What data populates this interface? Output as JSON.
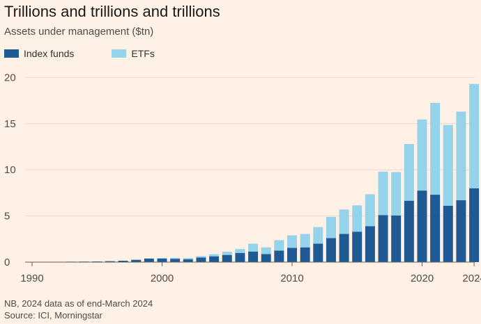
{
  "header": {
    "title": "Trillions and trillions and trillions",
    "subtitle": "Assets under management ($tn)"
  },
  "legend": {
    "items": [
      {
        "label": "Index funds",
        "color": "#1f5a94"
      },
      {
        "label": "ETFs",
        "color": "#94d3ea"
      }
    ]
  },
  "footer": {
    "note": "NB, 2024 data as of end-March 2024",
    "source": "Source: ICI, Morningstar"
  },
  "chart_data": {
    "type": "bar",
    "stacked": true,
    "categories": [
      1990,
      1991,
      1992,
      1993,
      1994,
      1995,
      1996,
      1997,
      1998,
      1999,
      2000,
      2001,
      2002,
      2003,
      2004,
      2005,
      2006,
      2007,
      2008,
      2009,
      2010,
      2011,
      2012,
      2013,
      2014,
      2015,
      2016,
      2017,
      2018,
      2019,
      2020,
      2021,
      2022,
      2023,
      2024
    ],
    "series": [
      {
        "name": "Index funds",
        "color": "#1f5a94",
        "values": [
          0.03,
          0.03,
          0.04,
          0.05,
          0.06,
          0.07,
          0.1,
          0.15,
          0.25,
          0.38,
          0.38,
          0.36,
          0.31,
          0.5,
          0.63,
          0.78,
          1.0,
          1.15,
          0.88,
          1.25,
          1.55,
          1.6,
          2.0,
          2.6,
          3.05,
          3.3,
          3.9,
          5.1,
          5.05,
          6.65,
          7.75,
          7.3,
          6.1,
          6.7,
          8.0
        ]
      },
      {
        "name": "ETFs",
        "color": "#94d3ea",
        "values": [
          0.0,
          0.0,
          0.0,
          0.0,
          0.0,
          0.0,
          0.0,
          0.0,
          0.0,
          0.04,
          0.07,
          0.1,
          0.14,
          0.15,
          0.23,
          0.35,
          0.42,
          0.85,
          0.72,
          1.13,
          1.35,
          1.45,
          1.8,
          2.3,
          2.65,
          2.85,
          3.45,
          4.7,
          4.7,
          6.15,
          7.7,
          9.95,
          8.75,
          9.6,
          11.3
        ]
      }
    ],
    "x_tick_labels": [
      "1990",
      "2000",
      "2010",
      "2020",
      "2024"
    ],
    "x_tick_years": [
      1990,
      2000,
      2010,
      2020,
      2024
    ],
    "y_ticks": [
      0,
      5,
      10,
      15,
      20
    ],
    "ylim": [
      0,
      21
    ],
    "grid": true,
    "legend_position": "top-left"
  }
}
